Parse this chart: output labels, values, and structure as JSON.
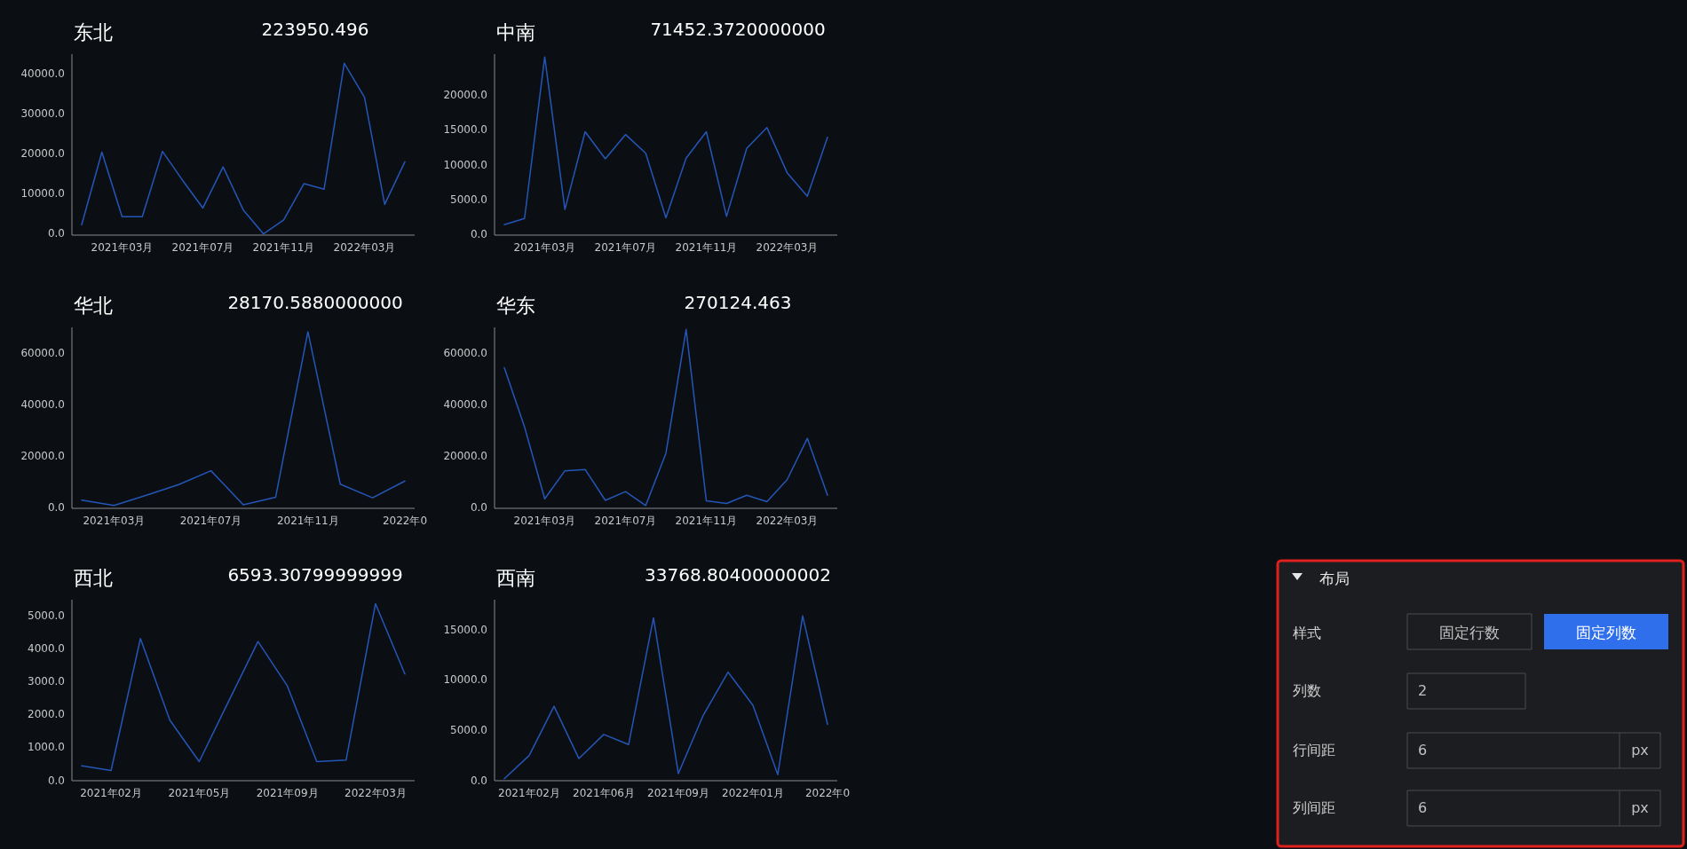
{
  "chart_data": [
    {
      "type": "line",
      "title": "东北",
      "subtitle": "223950.496",
      "color": "#2456b8",
      "categories": [
        null,
        null,
        "2021年03月",
        null,
        null,
        null,
        "2021年07月",
        null,
        null,
        null,
        "2021年11月",
        null,
        null,
        null,
        "2022年03月",
        null,
        null
      ],
      "values": [
        2200,
        20400,
        4200,
        4200,
        20600,
        13300,
        6400,
        16700,
        5900,
        -100,
        3400,
        12500,
        11100,
        42700,
        34200,
        7300,
        18000
      ],
      "ylim": [
        -400,
        45000
      ],
      "yticks": [
        {
          "value": 0,
          "label": "0.0"
        },
        {
          "value": 10000,
          "label": "10000.0"
        },
        {
          "value": 20000,
          "label": "20000.0"
        },
        {
          "value": 30000,
          "label": "30000.0"
        },
        {
          "value": 40000,
          "label": "40000.0"
        }
      ]
    },
    {
      "type": "line",
      "title": "中南",
      "subtitle": "71452.3720000000",
      "color": "#2456b8",
      "categories": [
        null,
        null,
        "2021年03月",
        null,
        null,
        null,
        "2021年07月",
        null,
        null,
        null,
        "2021年11月",
        null,
        null,
        null,
        "2022年03月",
        null,
        null
      ],
      "values": [
        1400,
        2300,
        25600,
        3600,
        14800,
        10900,
        14400,
        11700,
        2400,
        11000,
        14800,
        2600,
        12400,
        15400,
        8900,
        5500,
        14000
      ],
      "ylim": [
        -100,
        26000
      ],
      "yticks": [
        {
          "value": 0,
          "label": "0.0"
        },
        {
          "value": 5000,
          "label": "5000.0"
        },
        {
          "value": 10000,
          "label": "10000.0"
        },
        {
          "value": 15000,
          "label": "15000.0"
        },
        {
          "value": 20000,
          "label": "20000.0"
        }
      ]
    },
    {
      "type": "line",
      "title": "华北",
      "subtitle": "28170.5880000000",
      "color": "#2456b8",
      "categories": [
        null,
        "2021年03月",
        null,
        null,
        "2021年07月",
        null,
        null,
        "2021年11月",
        null,
        null,
        "2022年0"
      ],
      "values": [
        2900,
        800,
        4800,
        8900,
        14300,
        1100,
        4000,
        68300,
        9100,
        3800,
        10300
      ],
      "ylim": [
        -300,
        70000
      ],
      "yticks": [
        {
          "value": 0,
          "label": "0.0"
        },
        {
          "value": 20000,
          "label": "20000.0"
        },
        {
          "value": 40000,
          "label": "40000.0"
        },
        {
          "value": 60000,
          "label": "60000.0"
        }
      ]
    },
    {
      "type": "line",
      "title": "华东",
      "subtitle": "270124.463",
      "color": "#2456b8",
      "categories": [
        null,
        null,
        "2021年03月",
        null,
        null,
        null,
        "2021年07月",
        null,
        null,
        null,
        "2021年11月",
        null,
        null,
        null,
        "2022年03月",
        null,
        null
      ],
      "values": [
        54300,
        31300,
        3400,
        14300,
        14800,
        2800,
        6200,
        800,
        21100,
        69200,
        2600,
        1600,
        4800,
        2300,
        10800,
        26900,
        4800
      ],
      "ylim": [
        -300,
        70000
      ],
      "yticks": [
        {
          "value": 0,
          "label": "0.0"
        },
        {
          "value": 20000,
          "label": "20000.0"
        },
        {
          "value": 40000,
          "label": "40000.0"
        },
        {
          "value": 60000,
          "label": "60000.0"
        }
      ]
    },
    {
      "type": "line",
      "title": "西北",
      "subtitle": "6593.30799999999",
      "color": "#2456b8",
      "categories": [
        null,
        "2021年02月",
        null,
        null,
        "2021年05月",
        null,
        null,
        "2021年09月",
        null,
        null,
        "2022年03月",
        null
      ],
      "values": [
        450,
        310,
        4320,
        1840,
        580,
        2410,
        4230,
        2880,
        580,
        630,
        5380,
        3240
      ],
      "ylim": [
        0,
        5500
      ],
      "yticks": [
        {
          "value": 0,
          "label": "0.0"
        },
        {
          "value": 1000,
          "label": "1000.0"
        },
        {
          "value": 2000,
          "label": "2000.0"
        },
        {
          "value": 3000,
          "label": "3000.0"
        },
        {
          "value": 4000,
          "label": "4000.0"
        },
        {
          "value": 5000,
          "label": "5000.0"
        }
      ]
    },
    {
      "type": "line",
      "title": "西南",
      "subtitle": "33768.80400000002",
      "color": "#2456b8",
      "categories": [
        null,
        "2021年02月",
        null,
        null,
        "2021年06月",
        null,
        null,
        "2021年09月",
        null,
        null,
        "2022年01月",
        null,
        null,
        "2022年0"
      ],
      "values": [
        200,
        2500,
        7400,
        2200,
        4600,
        3600,
        16200,
        700,
        6500,
        10800,
        7500,
        600,
        16400,
        5600
      ],
      "ylim": [
        0,
        18000
      ],
      "yticks": [
        {
          "value": 0,
          "label": "0.0"
        },
        {
          "value": 5000,
          "label": "5000.0"
        },
        {
          "value": 10000,
          "label": "10000.0"
        },
        {
          "value": 15000,
          "label": "15000.0"
        }
      ]
    },
    {
      "type": "other",
      "title": "布局",
      "annotations": [
        "样式",
        "固定行数",
        "固定列数",
        "列数",
        "2",
        "行间距",
        "6",
        "px",
        "列间距",
        "6",
        "px"
      ]
    }
  ]
}
